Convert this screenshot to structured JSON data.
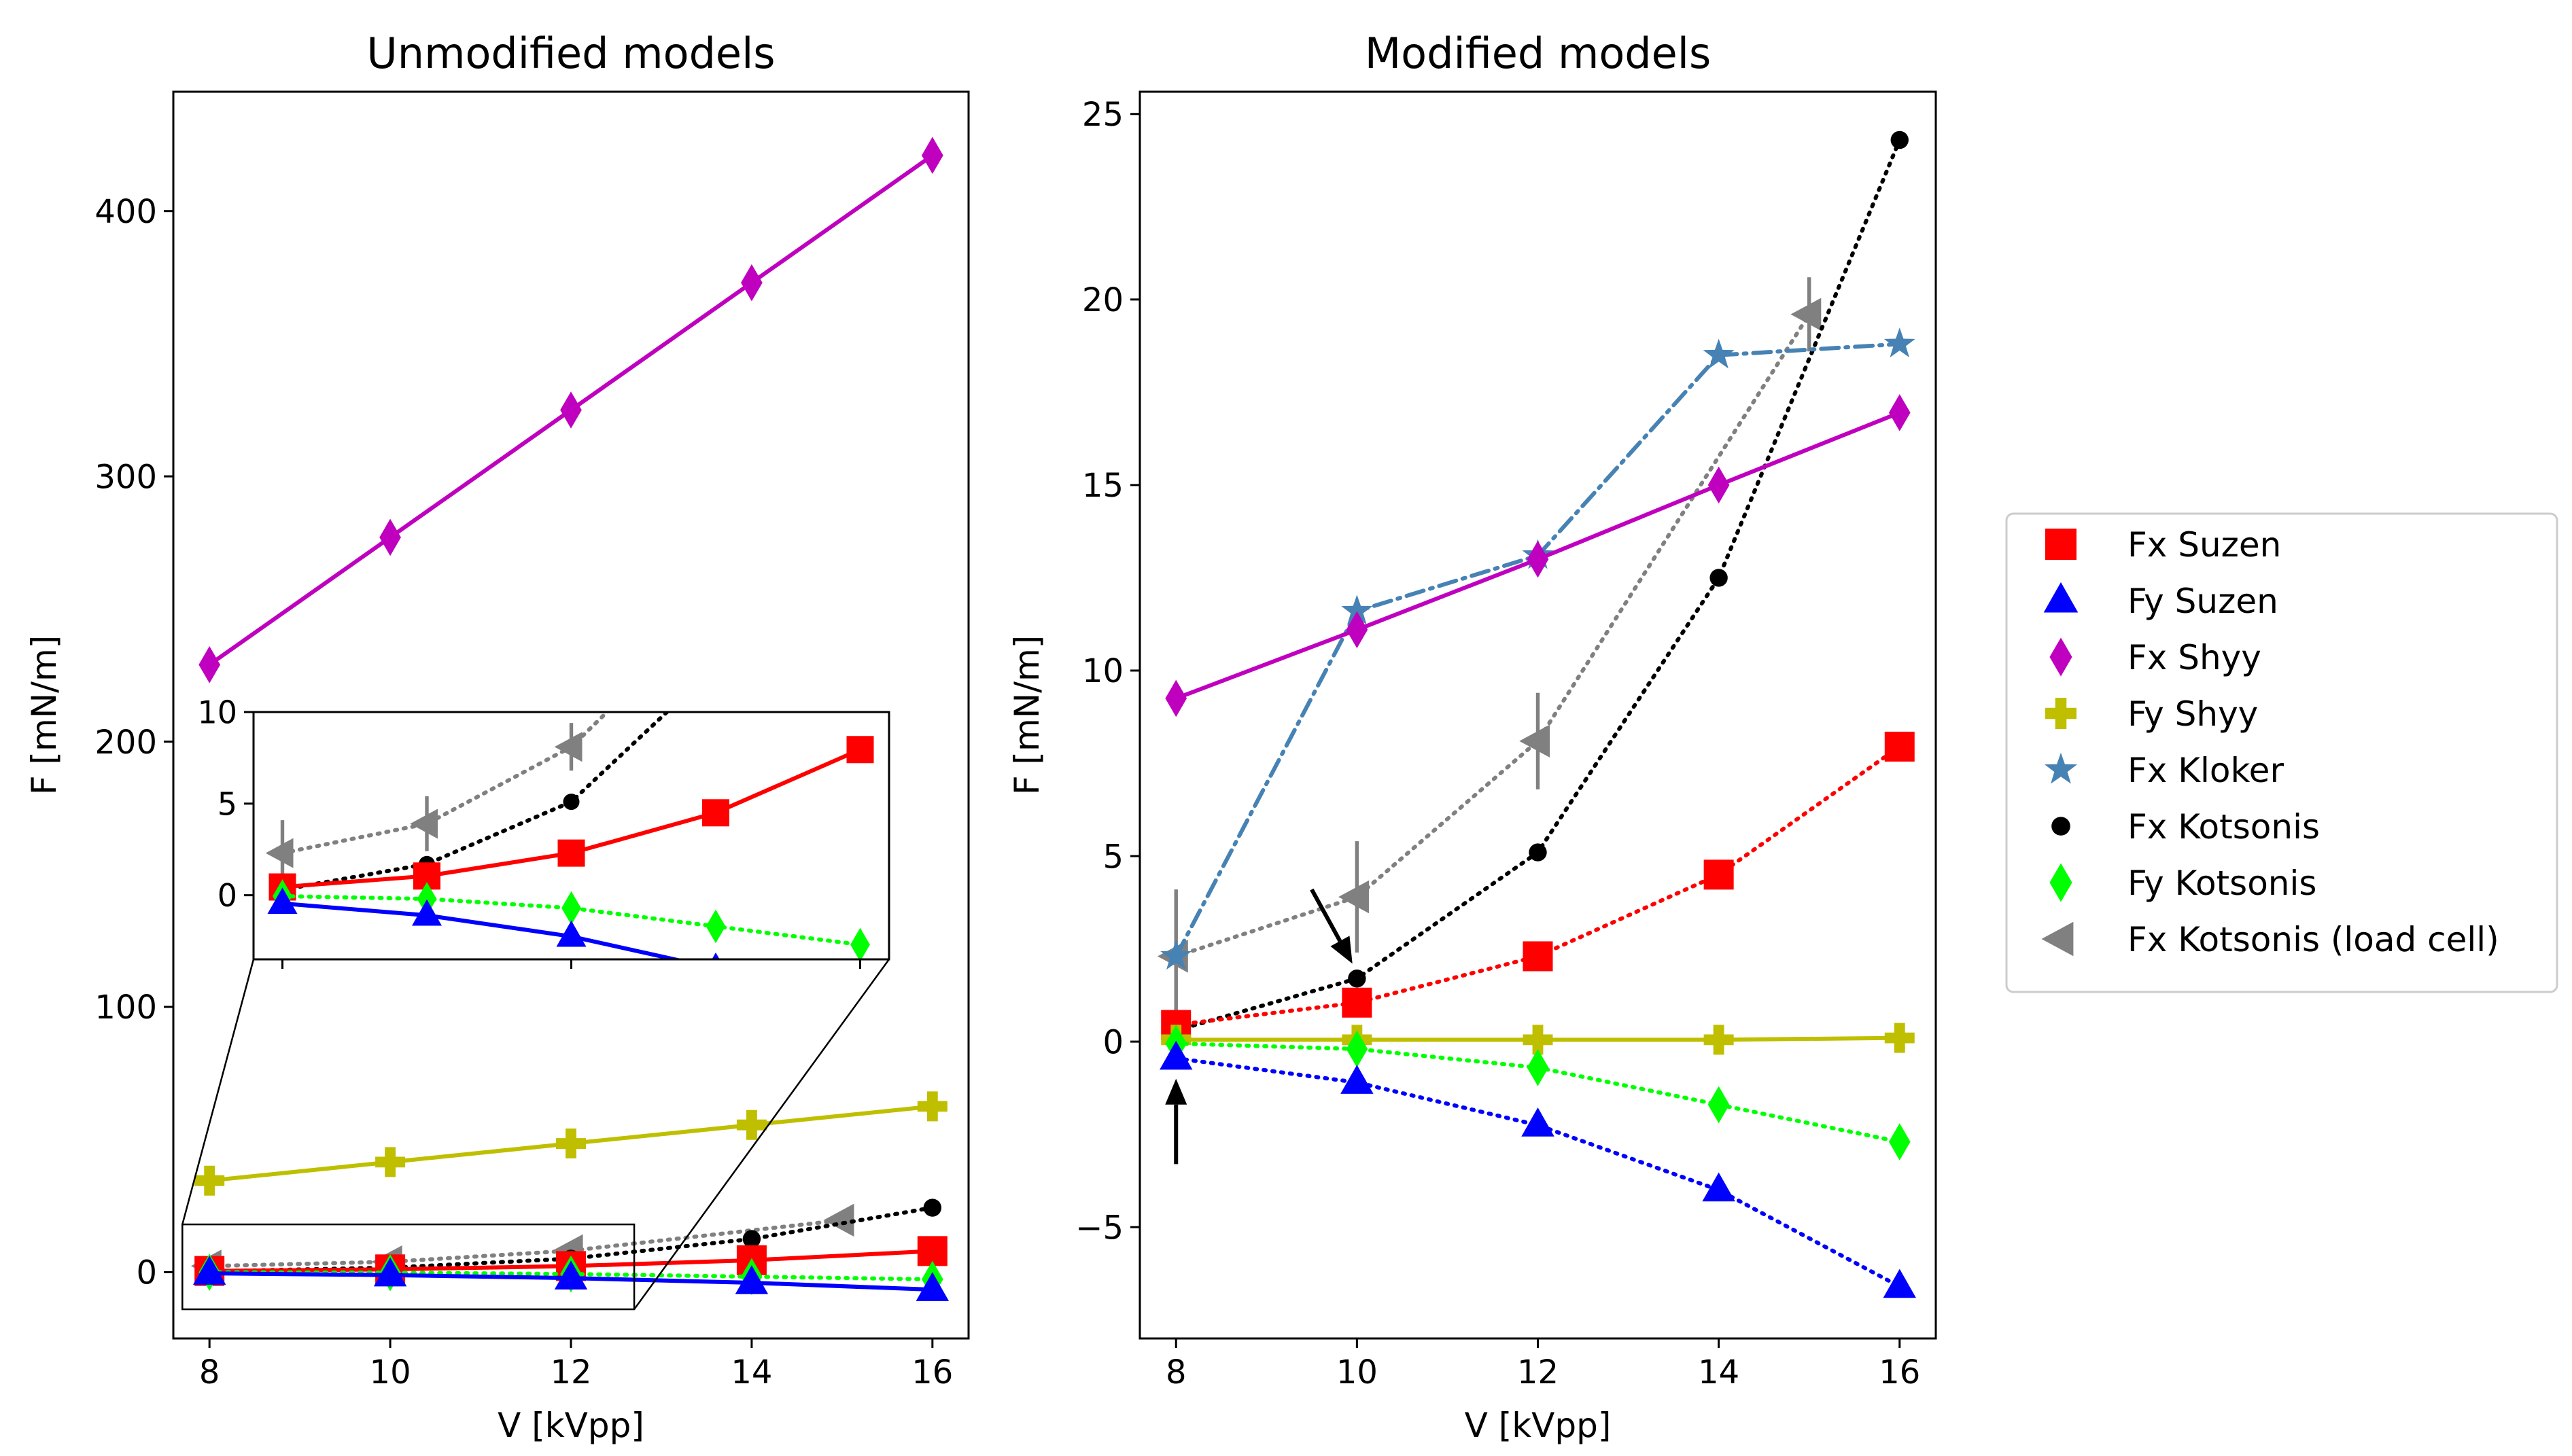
{
  "chart_data": [
    {
      "type": "line",
      "title": "Unmodified models",
      "xlabel": "V [kVpp]",
      "ylabel": "F [mN/m]",
      "xlim": [
        7.6,
        16.4
      ],
      "ylim": [
        -25,
        445
      ],
      "xticks": [
        8,
        10,
        12,
        14,
        16
      ],
      "yticks": [
        0,
        100,
        200,
        300,
        400
      ],
      "series": [
        {
          "name": "Fx Suzen",
          "key": "fx_suzen",
          "x": [
            8,
            10,
            12,
            14,
            16
          ],
          "y": [
            0.45,
            1.05,
            2.3,
            4.5,
            7.95
          ]
        },
        {
          "name": "Fy Suzen",
          "key": "fy_suzen",
          "x": [
            8,
            10,
            12,
            14,
            16
          ],
          "y": [
            -0.45,
            -1.1,
            -2.25,
            -4.0,
            -6.6
          ]
        },
        {
          "name": "Fx Shyy",
          "key": "fx_shyy",
          "x": [
            8,
            10,
            12,
            14,
            16
          ],
          "y": [
            229,
            277,
            325,
            373,
            421
          ]
        },
        {
          "name": "Fy Shyy",
          "key": "fy_shyy",
          "x": [
            8,
            10,
            12,
            14,
            16
          ],
          "y": [
            34.5,
            41.5,
            48.5,
            55.5,
            62.5
          ]
        },
        {
          "name": "Fx Kotsonis",
          "key": "fx_kotsonis",
          "x": [
            8,
            10,
            12,
            14,
            16
          ],
          "y": [
            0.3,
            1.7,
            5.1,
            12.5,
            24.3
          ]
        },
        {
          "name": "Fy Kotsonis",
          "key": "fy_kotsonis",
          "x": [
            8,
            10,
            12,
            14,
            16
          ],
          "y": [
            -0.05,
            -0.2,
            -0.7,
            -1.7,
            -2.7
          ]
        },
        {
          "name": "Fx Kotsonis (load cell)",
          "key": "fx_kotsonis_lc",
          "x": [
            8,
            10,
            12,
            15
          ],
          "y": [
            2.3,
            3.9,
            8.1,
            19.6
          ],
          "err": [
            1.8,
            1.5,
            1.3,
            1.0
          ]
        }
      ],
      "inset": {
        "xlim": [
          7.6,
          16.4
        ],
        "ylim": [
          -3.5,
          10
        ],
        "xticks": [
          8,
          12,
          16
        ],
        "yticks": [
          0,
          5,
          10
        ],
        "zoom_box_xlim": [
          7.7,
          12.7
        ],
        "zoom_box_ylim": [
          -14,
          18
        ]
      }
    },
    {
      "type": "line",
      "title": "Modified models",
      "xlabel": "V [kVpp]",
      "ylabel": "F [mN/m]",
      "xlim": [
        7.6,
        16.4
      ],
      "ylim": [
        -8,
        25.6
      ],
      "xticks": [
        8,
        10,
        12,
        14,
        16
      ],
      "yticks": [
        -5,
        0,
        5,
        10,
        15,
        20,
        25
      ],
      "series": [
        {
          "name": "Fx Suzen",
          "key": "fx_suzen",
          "x": [
            8,
            10,
            12,
            14,
            16
          ],
          "y": [
            0.45,
            1.05,
            2.3,
            4.5,
            7.95
          ]
        },
        {
          "name": "Fy Suzen",
          "key": "fy_suzen",
          "x": [
            8,
            10,
            12,
            14,
            16
          ],
          "y": [
            -0.45,
            -1.1,
            -2.25,
            -4.0,
            -6.6
          ]
        },
        {
          "name": "Fx Shyy",
          "key": "fx_shyy",
          "x": [
            8,
            10,
            12,
            14,
            16
          ],
          "y": [
            9.25,
            11.1,
            13.0,
            15.0,
            16.95
          ]
        },
        {
          "name": "Fy Shyy",
          "key": "fy_shyy",
          "x": [
            8,
            10,
            12,
            14,
            16
          ],
          "y": [
            0.05,
            0.05,
            0.05,
            0.05,
            0.1
          ]
        },
        {
          "name": "Fx Kloker",
          "key": "fx_kloker",
          "x": [
            8,
            10,
            12,
            14,
            16
          ],
          "y": [
            2.3,
            11.6,
            13.1,
            18.5,
            18.8
          ]
        },
        {
          "name": "Fx Kotsonis",
          "key": "fx_kotsonis",
          "x": [
            8,
            10,
            12,
            14,
            16
          ],
          "y": [
            0.3,
            1.7,
            5.1,
            12.5,
            24.3
          ]
        },
        {
          "name": "Fy Kotsonis",
          "key": "fy_kotsonis",
          "x": [
            8,
            10,
            12,
            14,
            16
          ],
          "y": [
            -0.05,
            -0.2,
            -0.7,
            -1.7,
            -2.7
          ]
        },
        {
          "name": "Fx Kotsonis (load cell)",
          "key": "fx_kotsonis_lc",
          "x": [
            8,
            10,
            12,
            15
          ],
          "y": [
            2.3,
            3.9,
            8.1,
            19.6
          ],
          "err": [
            1.8,
            1.5,
            1.3,
            1.0
          ]
        }
      ],
      "arrows": [
        {
          "from": [
            8,
            -3.3
          ],
          "to": [
            8,
            -1.0
          ]
        },
        {
          "from": [
            9.5,
            4.1
          ],
          "to": [
            9.95,
            2.1
          ]
        }
      ]
    }
  ],
  "legend": {
    "placement": "right",
    "entries": [
      {
        "label": "Fx Suzen",
        "key": "fx_suzen"
      },
      {
        "label": "Fy Suzen",
        "key": "fy_suzen"
      },
      {
        "label": "Fx Shyy",
        "key": "fx_shyy"
      },
      {
        "label": "Fy Shyy",
        "key": "fy_shyy"
      },
      {
        "label": "Fx Kloker",
        "key": "fx_kloker"
      },
      {
        "label": "Fx Kotsonis",
        "key": "fx_kotsonis"
      },
      {
        "label": "Fy Kotsonis",
        "key": "fy_kotsonis"
      },
      {
        "label": "Fx Kotsonis (load cell)",
        "key": "fx_kotsonis_lc"
      }
    ]
  },
  "styles": {
    "fx_suzen": {
      "color": "#ff0000",
      "marker": "square",
      "dash": "dotted-modified"
    },
    "fy_suzen": {
      "color": "#0000ff",
      "marker": "triangle",
      "dash": "dotted-modified"
    },
    "fx_shyy": {
      "color": "#bf00bf",
      "marker": "thin-diamond",
      "dash": "solid"
    },
    "fy_shyy": {
      "color": "#bfbf00",
      "marker": "plus-filled",
      "dash": "solid"
    },
    "fx_kloker": {
      "color": "#4682b4",
      "marker": "star",
      "dash": "dashdot"
    },
    "fx_kotsonis": {
      "color": "#000000",
      "marker": "circle",
      "dash": "dotted"
    },
    "fy_kotsonis": {
      "color": "#00ff00",
      "marker": "thin-diamond",
      "dash": "dotted"
    },
    "fx_kotsonis_lc": {
      "color": "#808080",
      "marker": "triangle-left",
      "dash": "dotted"
    }
  },
  "unmodified_suzen_dash": "solid"
}
